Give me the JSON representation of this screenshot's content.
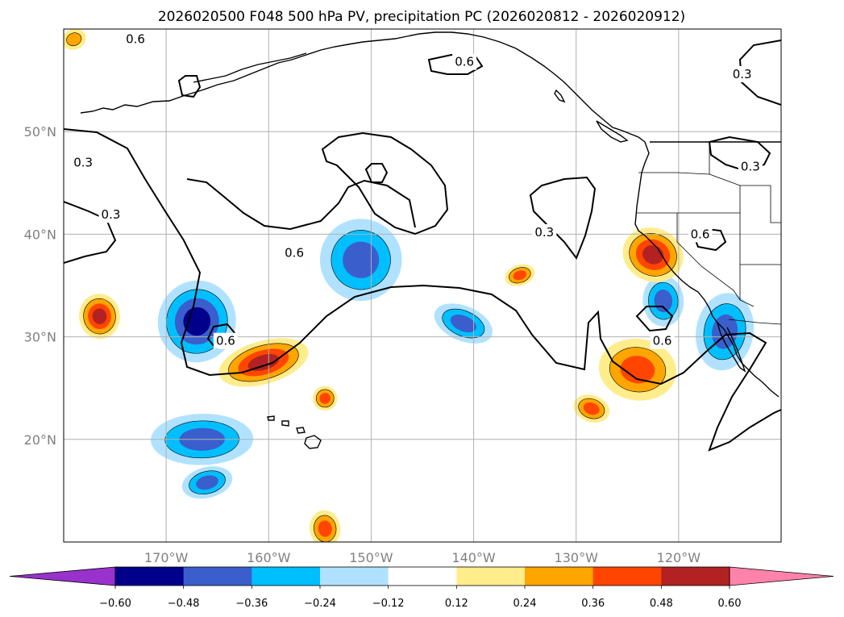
{
  "chart_data": {
    "type": "contour-map",
    "title": "2026020500 F048 500 hPa PV, precipitation PC (2026020812 - 2026020912)",
    "projection": "PlateCarree",
    "lon_range": [
      -180,
      -110
    ],
    "lat_range": [
      10,
      60
    ],
    "xticks": [
      {
        "lon": -170,
        "label": "170°W"
      },
      {
        "lon": -160,
        "label": "160°W"
      },
      {
        "lon": -150,
        "label": "150°W"
      },
      {
        "lon": -140,
        "label": "140°W"
      },
      {
        "lon": -130,
        "label": "130°W"
      },
      {
        "lon": -120,
        "label": "120°W"
      }
    ],
    "yticks": [
      {
        "lat": 20,
        "label": "20°N"
      },
      {
        "lat": 30,
        "label": "30°N"
      },
      {
        "lat": 40,
        "label": "40°N"
      },
      {
        "lat": 50,
        "label": "50°N"
      }
    ],
    "colorbar": {
      "extend": "both",
      "boundaries": [
        -0.6,
        -0.48,
        -0.36,
        -0.24,
        -0.12,
        0.12,
        0.24,
        0.36,
        0.48,
        0.6
      ],
      "tick_labels": [
        "−0.60",
        "−0.48",
        "−0.36",
        "−0.24",
        "−0.12",
        "0.12",
        "0.24",
        "0.36",
        "0.48",
        "0.60"
      ],
      "colors": [
        "#9932cc",
        "#00008b",
        "#3a5fcd",
        "#00bfff",
        "#b0e2ff",
        "#ffffff",
        "#ffec8b",
        "#ffa500",
        "#ff4500",
        "#b22222",
        "#ff82ab"
      ]
    },
    "pv_contour_levels": [
      0.3,
      0.6
    ],
    "pv_contour_labels": [
      {
        "text": "0.6",
        "lon": -173.0,
        "lat": 59.0
      },
      {
        "text": "0.6",
        "lon": -140.9,
        "lat": 56.8
      },
      {
        "text": "0.3",
        "lon": -113.8,
        "lat": 55.6
      },
      {
        "text": "0.3",
        "lon": -178.1,
        "lat": 47.0
      },
      {
        "text": "0.3",
        "lon": -113.0,
        "lat": 46.6
      },
      {
        "text": "0.3",
        "lon": -175.4,
        "lat": 41.9
      },
      {
        "text": "0.3",
        "lon": -133.1,
        "lat": 40.2
      },
      {
        "text": "0.6",
        "lon": -117.9,
        "lat": 40.0
      },
      {
        "text": "0.6",
        "lon": -157.5,
        "lat": 38.2
      },
      {
        "text": "0.6",
        "lon": -164.2,
        "lat": 29.6
      },
      {
        "text": "0.6",
        "lon": -121.6,
        "lat": 29.6
      }
    ],
    "precip_pc_features": [
      {
        "name": "neg-central-pacific",
        "lon": -151.0,
        "lat": 37.5,
        "rx": 4.0,
        "ry": 4.0,
        "levels": [
          -0.24,
          -0.36,
          -0.48
        ]
      },
      {
        "name": "neg-subtropical-west",
        "lon": -167.0,
        "lat": 31.5,
        "rx": 3.8,
        "ry": 4.0,
        "levels": [
          -0.24,
          -0.36,
          -0.48,
          -0.6
        ]
      },
      {
        "name": "neg-hawaii-south",
        "lon": -166.5,
        "lat": 20.0,
        "rx": 5.0,
        "ry": 2.5,
        "levels": [
          -0.24,
          -0.36,
          -0.48
        ]
      },
      {
        "name": "neg-far-south",
        "lon": -166.0,
        "lat": 15.8,
        "rx": 2.5,
        "ry": 1.5,
        "levels": [
          -0.24,
          -0.36,
          -0.48
        ]
      },
      {
        "name": "neg-east-pacific",
        "lon": -141.0,
        "lat": 31.3,
        "rx": 3.0,
        "ry": 1.7,
        "levels": [
          -0.24,
          -0.36,
          -0.48
        ]
      },
      {
        "name": "neg-baja",
        "lon": -115.5,
        "lat": 30.5,
        "rx": 2.8,
        "ry": 3.8,
        "levels": [
          -0.24,
          -0.36,
          -0.48
        ]
      },
      {
        "name": "neg-off-socal",
        "lon": -121.5,
        "lat": 33.5,
        "rx": 2.0,
        "ry": 2.5,
        "levels": [
          -0.24,
          -0.36,
          -0.48
        ]
      },
      {
        "name": "pos-subtropical-jet",
        "lon": -160.5,
        "lat": 27.5,
        "rx": 4.5,
        "ry": 2.1,
        "levels": [
          0.12,
          0.24,
          0.36,
          0.48
        ]
      },
      {
        "name": "pos-northern-california",
        "lon": -122.5,
        "lat": 38.0,
        "rx": 3.0,
        "ry": 2.6,
        "levels": [
          0.12,
          0.24,
          0.36,
          0.48
        ]
      },
      {
        "name": "pos-west-of-baja",
        "lon": -124.0,
        "lat": 26.8,
        "rx": 3.8,
        "ry": 3.0,
        "levels": [
          0.12,
          0.24,
          0.36
        ]
      },
      {
        "name": "pos-west-dateline",
        "lon": -176.5,
        "lat": 32.0,
        "rx": 2.0,
        "ry": 2.2,
        "levels": [
          0.12,
          0.24,
          0.36,
          0.48
        ]
      },
      {
        "name": "pos-east-pacific",
        "lon": -135.5,
        "lat": 36.0,
        "rx": 1.5,
        "ry": 1.0,
        "levels": [
          0.12,
          0.24,
          0.36
        ]
      },
      {
        "name": "pos-south",
        "lon": -128.5,
        "lat": 23.0,
        "rx": 1.8,
        "ry": 1.3,
        "levels": [
          0.12,
          0.24,
          0.36
        ]
      },
      {
        "name": "pos-hawaii-north",
        "lon": -154.5,
        "lat": 24.0,
        "rx": 1.2,
        "ry": 1.2,
        "levels": [
          0.12,
          0.24,
          0.36
        ]
      },
      {
        "name": "pos-bottom",
        "lon": -154.5,
        "lat": 11.3,
        "rx": 1.5,
        "ry": 1.8,
        "levels": [
          0.12,
          0.24,
          0.36
        ]
      },
      {
        "name": "pos-top-left",
        "lon": -179.0,
        "lat": 59.0,
        "rx": 1.2,
        "ry": 1.0,
        "levels": [
          0.12,
          0.24
        ]
      }
    ]
  }
}
